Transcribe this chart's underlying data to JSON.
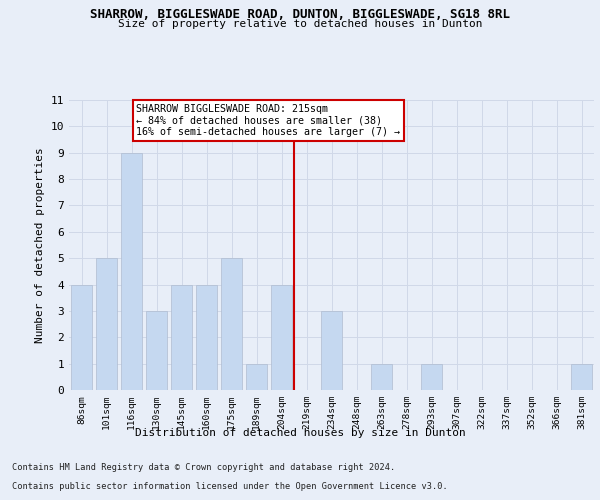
{
  "title": "SHARROW, BIGGLESWADE ROAD, DUNTON, BIGGLESWADE, SG18 8RL",
  "subtitle": "Size of property relative to detached houses in Dunton",
  "xlabel": "Distribution of detached houses by size in Dunton",
  "ylabel": "Number of detached properties",
  "categories": [
    "86sqm",
    "101sqm",
    "116sqm",
    "130sqm",
    "145sqm",
    "160sqm",
    "175sqm",
    "189sqm",
    "204sqm",
    "219sqm",
    "234sqm",
    "248sqm",
    "263sqm",
    "278sqm",
    "293sqm",
    "307sqm",
    "322sqm",
    "337sqm",
    "352sqm",
    "366sqm",
    "381sqm"
  ],
  "values": [
    4,
    5,
    9,
    3,
    4,
    4,
    5,
    1,
    4,
    0,
    3,
    0,
    1,
    0,
    1,
    0,
    0,
    0,
    0,
    0,
    1
  ],
  "bar_color": "#c5d8f0",
  "bar_edge_color": "#b0bcd0",
  "grid_color": "#d0d8e8",
  "vline_x": 8.5,
  "vline_color": "#cc0000",
  "annotation_text": "SHARROW BIGGLESWADE ROAD: 215sqm\n← 84% of detached houses are smaller (38)\n16% of semi-detached houses are larger (7) →",
  "annotation_box_color": "#ffffff",
  "annotation_box_edge_color": "#cc0000",
  "ylim": [
    0,
    11
  ],
  "yticks": [
    0,
    1,
    2,
    3,
    4,
    5,
    6,
    7,
    8,
    9,
    10,
    11
  ],
  "footer1": "Contains HM Land Registry data © Crown copyright and database right 2024.",
  "footer2": "Contains public sector information licensed under the Open Government Licence v3.0.",
  "background_color": "#e8eef8",
  "plot_bg_color": "#e8eef8"
}
